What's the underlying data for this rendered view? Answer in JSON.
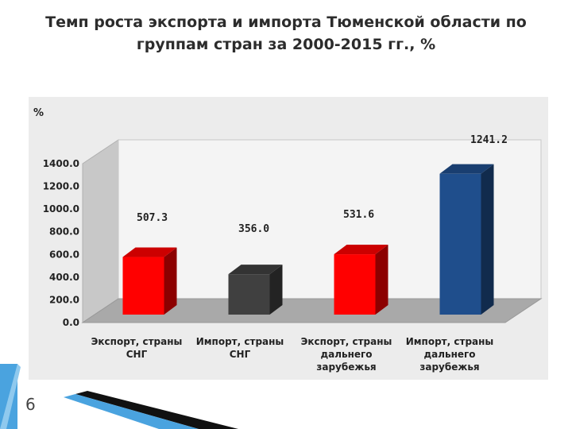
{
  "title": "Темп роста экспорта и импорта Тюменской области по группам стран за 2000-2015 гг., %",
  "page_number": "6",
  "chart_data": {
    "type": "bar",
    "ylabel": "%",
    "ylim": [
      0,
      1400
    ],
    "yticks": [
      "0.0",
      "200.0",
      "400.0",
      "600.0",
      "800.0",
      "1000.0",
      "1200.0",
      "1400.0"
    ],
    "categories": [
      [
        "Экспорт, страны",
        "СНГ"
      ],
      [
        "Импорт, страны",
        "СНГ"
      ],
      [
        "Экспорт, страны",
        "дальнего",
        "зарубежья"
      ],
      [
        "Импорт, страны",
        "дальнего",
        "зарубежья"
      ]
    ],
    "values": [
      507.3,
      356.0,
      531.6,
      1241.2
    ],
    "data_labels": [
      "507.3",
      "356.0",
      "531.6",
      "1241.2"
    ],
    "colors": [
      "#ff0000",
      "#404040",
      "#ff0000",
      "#1f4e8c"
    ],
    "grid": false
  },
  "decor": {
    "accent": "#4aa3df",
    "dark": "#111111"
  }
}
